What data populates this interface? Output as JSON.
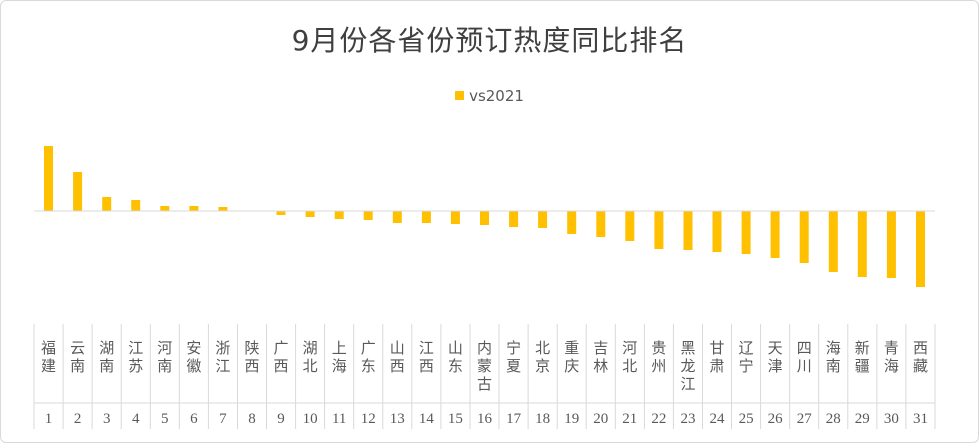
{
  "chart_data": {
    "type": "bar",
    "title": "9月份各省份预订热度同比排名",
    "legend": {
      "position": "top",
      "entries": [
        "vs2021"
      ]
    },
    "colors": {
      "bar": "#FFC000",
      "axis": "#d9d9d9",
      "text": "#595959"
    },
    "grid": false,
    "ylim": [
      -0.76,
      0.67
    ],
    "categories": [
      "福建",
      "云南",
      "湖南",
      "江苏",
      "河南",
      "安徽",
      "浙江",
      "陕西",
      "广西",
      "湖北",
      "上海",
      "广东",
      "山西",
      "江西",
      "山东",
      "内蒙古",
      "宁夏",
      "北京",
      "重庆",
      "吉林",
      "河北",
      "贵州",
      "黑龙江",
      "甘肃",
      "辽宁",
      "天津",
      "四川",
      "海南",
      "新疆",
      "青海",
      "西藏"
    ],
    "ranks": [
      "1",
      "2",
      "3",
      "4",
      "5",
      "6",
      "7",
      "8",
      "9",
      "10",
      "11",
      "12",
      "13",
      "14",
      "15",
      "16",
      "17",
      "18",
      "19",
      "20",
      "21",
      "22",
      "23",
      "24",
      "25",
      "26",
      "27",
      "28",
      "29",
      "30",
      "31"
    ],
    "series": [
      {
        "name": "vs2021",
        "values": [
          0.65,
          0.39,
          0.14,
          0.11,
          0.05,
          0.05,
          0.04,
          0.0,
          -0.04,
          -0.06,
          -0.08,
          -0.09,
          -0.12,
          -0.12,
          -0.13,
          -0.14,
          -0.16,
          -0.17,
          -0.23,
          -0.26,
          -0.3,
          -0.38,
          -0.39,
          -0.41,
          -0.43,
          -0.47,
          -0.52,
          -0.61,
          -0.66,
          -0.67,
          -0.76
        ]
      }
    ]
  }
}
